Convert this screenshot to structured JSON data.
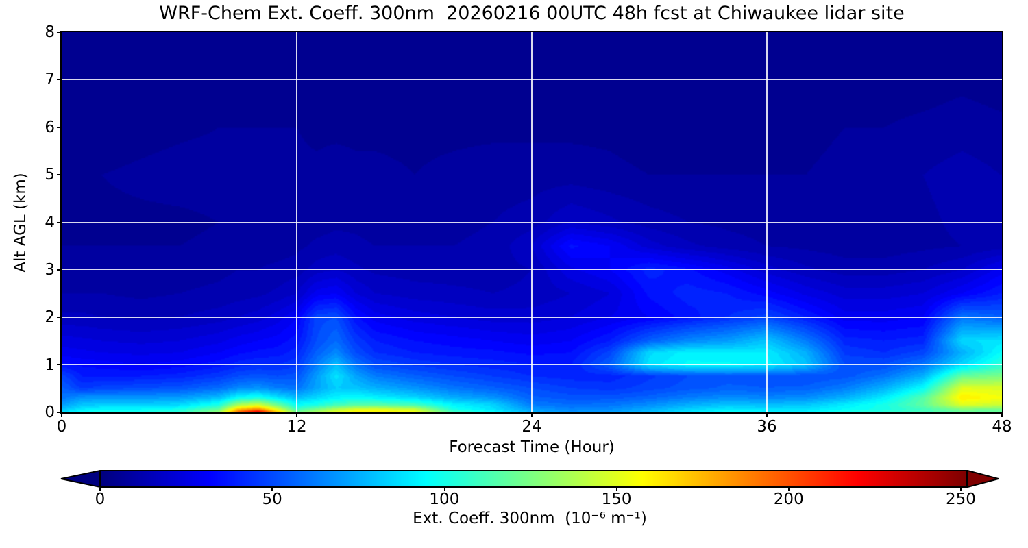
{
  "title": "WRF-Chem Ext. Coeff. 300nm  20260216 00UTC 48h fcst at Chiwaukee lidar site",
  "axes": {
    "x": {
      "label": "Forecast Time (Hour)",
      "range": [
        0,
        48
      ],
      "ticks": [
        0,
        12,
        24,
        36,
        48
      ],
      "gridlines": [
        12,
        24,
        36
      ]
    },
    "y": {
      "label": "Alt AGL (km)",
      "range": [
        0,
        8
      ],
      "ticks": [
        0,
        1,
        2,
        3,
        4,
        5,
        6,
        7,
        8
      ],
      "gridlines": [
        1,
        2,
        3,
        4,
        5,
        6,
        7
      ]
    }
  },
  "colorbar": {
    "label": "Ext. Coeff. 300nm  (10⁻⁶ m⁻¹)",
    "ticks": [
      0,
      50,
      100,
      150,
      200,
      250
    ],
    "bar_max": 252,
    "colormap": "jet",
    "extend": "both",
    "under_color": "#000080",
    "over_color": "#800000"
  },
  "chart_data": {
    "type": "heatmap",
    "title": "WRF-Chem Ext. Coeff. 300nm  20260216 00UTC 48h fcst at Chiwaukee lidar site",
    "xlabel": "Forecast Time (Hour)",
    "ylabel": "Alt AGL (km)",
    "units": "10⁻⁶ m⁻¹",
    "colormap": "jet",
    "grid": true,
    "vmin": 0,
    "vmax": 252,
    "x_hours": [
      0,
      1,
      2,
      4,
      6,
      8,
      9,
      10,
      11,
      12,
      13,
      14,
      15,
      16,
      18,
      20,
      22,
      24,
      26,
      28,
      30,
      32,
      34,
      36,
      38,
      40,
      42,
      44,
      46,
      48
    ],
    "y_alt_km": [
      0,
      0.05,
      0.15,
      0.3,
      0.5,
      0.75,
      1,
      1.25,
      1.5,
      2,
      2.5,
      3,
      3.5,
      4,
      5,
      6,
      7,
      8
    ],
    "values_by_altitude": [
      [
        88,
        95,
        100,
        100,
        105,
        130,
        195,
        225,
        170,
        120,
        135,
        150,
        160,
        162,
        155,
        110,
        95,
        75,
        68,
        70,
        78,
        88,
        95,
        92,
        92,
        100,
        105,
        112,
        120,
        118
      ],
      [
        80,
        90,
        95,
        95,
        100,
        120,
        175,
        190,
        150,
        110,
        125,
        140,
        150,
        152,
        145,
        100,
        88,
        70,
        64,
        66,
        74,
        84,
        90,
        88,
        88,
        95,
        100,
        110,
        125,
        122
      ],
      [
        70,
        80,
        82,
        82,
        85,
        100,
        135,
        145,
        120,
        95,
        100,
        110,
        115,
        115,
        110,
        92,
        84,
        62,
        58,
        60,
        66,
        74,
        80,
        78,
        80,
        90,
        100,
        118,
        150,
        145
      ],
      [
        60,
        68,
        68,
        68,
        70,
        78,
        95,
        100,
        88,
        78,
        85,
        92,
        95,
        92,
        85,
        74,
        68,
        55,
        52,
        52,
        56,
        62,
        66,
        64,
        66,
        75,
        90,
        115,
        162,
        155
      ],
      [
        55,
        45,
        48,
        50,
        52,
        58,
        65,
        68,
        62,
        60,
        72,
        82,
        80,
        75,
        68,
        60,
        55,
        50,
        46,
        44,
        48,
        52,
        55,
        54,
        55,
        62,
        75,
        95,
        150,
        148
      ],
      [
        48,
        38,
        38,
        38,
        40,
        45,
        50,
        52,
        50,
        52,
        70,
        88,
        72,
        62,
        55,
        50,
        46,
        42,
        40,
        40,
        45,
        50,
        52,
        52,
        50,
        52,
        60,
        75,
        120,
        125
      ],
      [
        35,
        33,
        32,
        30,
        32,
        36,
        40,
        42,
        42,
        45,
        62,
        78,
        60,
        50,
        45,
        42,
        40,
        38,
        38,
        55,
        88,
        95,
        95,
        92,
        80,
        50,
        50,
        60,
        85,
        105
      ],
      [
        28,
        27,
        26,
        25,
        26,
        30,
        33,
        35,
        36,
        40,
        55,
        65,
        50,
        42,
        38,
        36,
        35,
        33,
        34,
        48,
        85,
        92,
        90,
        90,
        75,
        45,
        42,
        48,
        75,
        95
      ],
      [
        24,
        23,
        22,
        21,
        22,
        25,
        28,
        30,
        32,
        36,
        50,
        58,
        45,
        38,
        34,
        32,
        30,
        28,
        30,
        38,
        55,
        65,
        70,
        80,
        62,
        40,
        38,
        40,
        85,
        88
      ],
      [
        15,
        15,
        14,
        13,
        14,
        16,
        18,
        20,
        24,
        30,
        48,
        50,
        35,
        28,
        24,
        22,
        20,
        20,
        22,
        26,
        30,
        36,
        42,
        48,
        38,
        28,
        28,
        30,
        60,
        55
      ],
      [
        10,
        10,
        10,
        9,
        10,
        11,
        12,
        13,
        15,
        18,
        28,
        30,
        22,
        18,
        16,
        15,
        14,
        15,
        18,
        22,
        35,
        40,
        38,
        32,
        25,
        20,
        20,
        22,
        30,
        38
      ],
      [
        8,
        8,
        8,
        7,
        8,
        9,
        10,
        10,
        11,
        12,
        16,
        18,
        15,
        13,
        12,
        12,
        12,
        14,
        25,
        30,
        40,
        35,
        28,
        20,
        15,
        12,
        12,
        14,
        18,
        28
      ],
      [
        6,
        6,
        6,
        6,
        6,
        7,
        7,
        8,
        8,
        9,
        11,
        12,
        11,
        10,
        10,
        10,
        11,
        18,
        35,
        30,
        20,
        15,
        12,
        10,
        9,
        8,
        8,
        9,
        10,
        12
      ],
      [
        5,
        5,
        5,
        5,
        5,
        6,
        6,
        6,
        6,
        7,
        8,
        9,
        9,
        8,
        8,
        9,
        10,
        12,
        18,
        15,
        12,
        10,
        9,
        8,
        7,
        7,
        8,
        9,
        11,
        14
      ],
      [
        4,
        4,
        6,
        7,
        8,
        8,
        8,
        8,
        7,
        7,
        7,
        8,
        7,
        7,
        6,
        7,
        8,
        8,
        8,
        7,
        6,
        6,
        6,
        6,
        6,
        7,
        9,
        10,
        12,
        10
      ],
      [
        3,
        3,
        3,
        4,
        5,
        6,
        6,
        6,
        6,
        6,
        5,
        5,
        5,
        5,
        5,
        5,
        5,
        5,
        5,
        5,
        4,
        4,
        4,
        4,
        5,
        6,
        6,
        7,
        8,
        7
      ],
      [
        3,
        3,
        3,
        3,
        4,
        4,
        4,
        4,
        4,
        4,
        4,
        4,
        4,
        4,
        4,
        4,
        4,
        4,
        4,
        4,
        3,
        3,
        3,
        3,
        3,
        4,
        4,
        4,
        5,
        4
      ],
      [
        2,
        2,
        2,
        2,
        3,
        3,
        3,
        3,
        3,
        3,
        3,
        3,
        3,
        3,
        3,
        3,
        3,
        3,
        3,
        3,
        2,
        2,
        2,
        2,
        2,
        3,
        3,
        3,
        3,
        3
      ]
    ]
  }
}
